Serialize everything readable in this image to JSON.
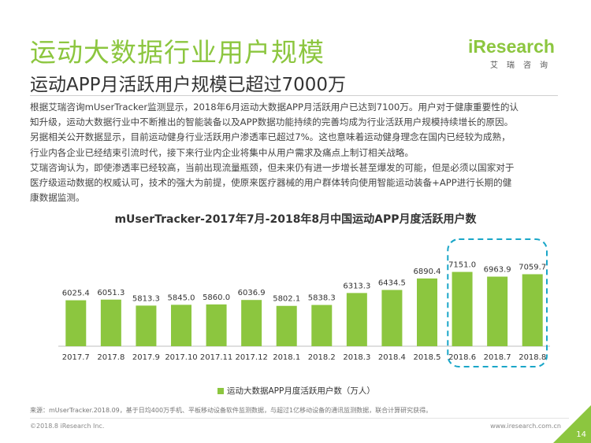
{
  "header": {
    "title": "运动大数据行业用户规模",
    "subtitle": "运动APP月活跃用户规模已超过7000万"
  },
  "logo": {
    "word": "iResearch",
    "cn": "艾瑞咨询"
  },
  "body_lines": [
    "根据艾瑞咨询mUserTracker监测显示，2018年6月运动大数据APP月活跃用户已达到7100万。用户对于健康重要性的认",
    "知升级，运动大数据行业中不断推出的智能装备以及APP数据功能持续的完善均成为行业活跃用户规模持续增长的原因。",
    "另据相关公开数据显示，目前运动健身行业活跃用户渗透率已超过7%。这也意味着运动健身理念在国内已经较为成熟，",
    "行业内各企业已经结束引流时代，接下来行业内企业将集中从用户需求及痛点上制订相关战略。",
    "艾瑞咨询认为，即使渗透率已经较高，当前出现流量瓶颈，但未来仍有进一步增长甚至爆发的可能，但是必须以国家对于",
    "医疗级运动数据的权威认可，技术的强大为前提，使原来医疗器械的用户群体转向使用智能运动装备+APP进行长期的健",
    "康数据监测。"
  ],
  "chart_data": {
    "type": "bar",
    "title": "mUserTracker-2017年7月-2018年8月中国运动APP月度活跃用户数",
    "categories": [
      "2017.7",
      "2017.8",
      "2017.9",
      "2017.10",
      "2017.11",
      "2017.12",
      "2018.1",
      "2018.2",
      "2018.3",
      "2018.4",
      "2018.5",
      "2018.6",
      "2018.7",
      "2018.8"
    ],
    "series": [
      {
        "name": "运动大数据APP月度活跃用户数（万人）",
        "values": [
          6025.4,
          6051.3,
          5813.3,
          5845.0,
          5860.0,
          6036.9,
          5802.1,
          5838.3,
          6313.3,
          6434.5,
          6890.4,
          7151.0,
          6963.9,
          7059.7
        ]
      }
    ],
    "value_labels": [
      "6025.4",
      "6051.3",
      "5813.3",
      "5845.0",
      "5860.0",
      "6036.9",
      "5802.1",
      "5838.3",
      "6313.3",
      "6434.5",
      "6890.4",
      "7151.0",
      "6963.9",
      "7059.7"
    ],
    "highlight": [
      "2018.6",
      "2018.7",
      "2018.8"
    ],
    "bar_color": "#8cc63f",
    "highlight_color": "#1aa6c8",
    "legend_position": "bottom",
    "grid": false,
    "ylim": [
      0,
      7700
    ]
  },
  "footer": {
    "source": "来源：mUserTracker.2018.09，基于日均400万手机、平板移动设备软件监测数据，与超过1亿移动设备的通讯监测数据，联合计算研究获得。",
    "copyright": "©2018.8 iResearch Inc.",
    "website": "www.iresearch.com.cn",
    "page": "14"
  }
}
